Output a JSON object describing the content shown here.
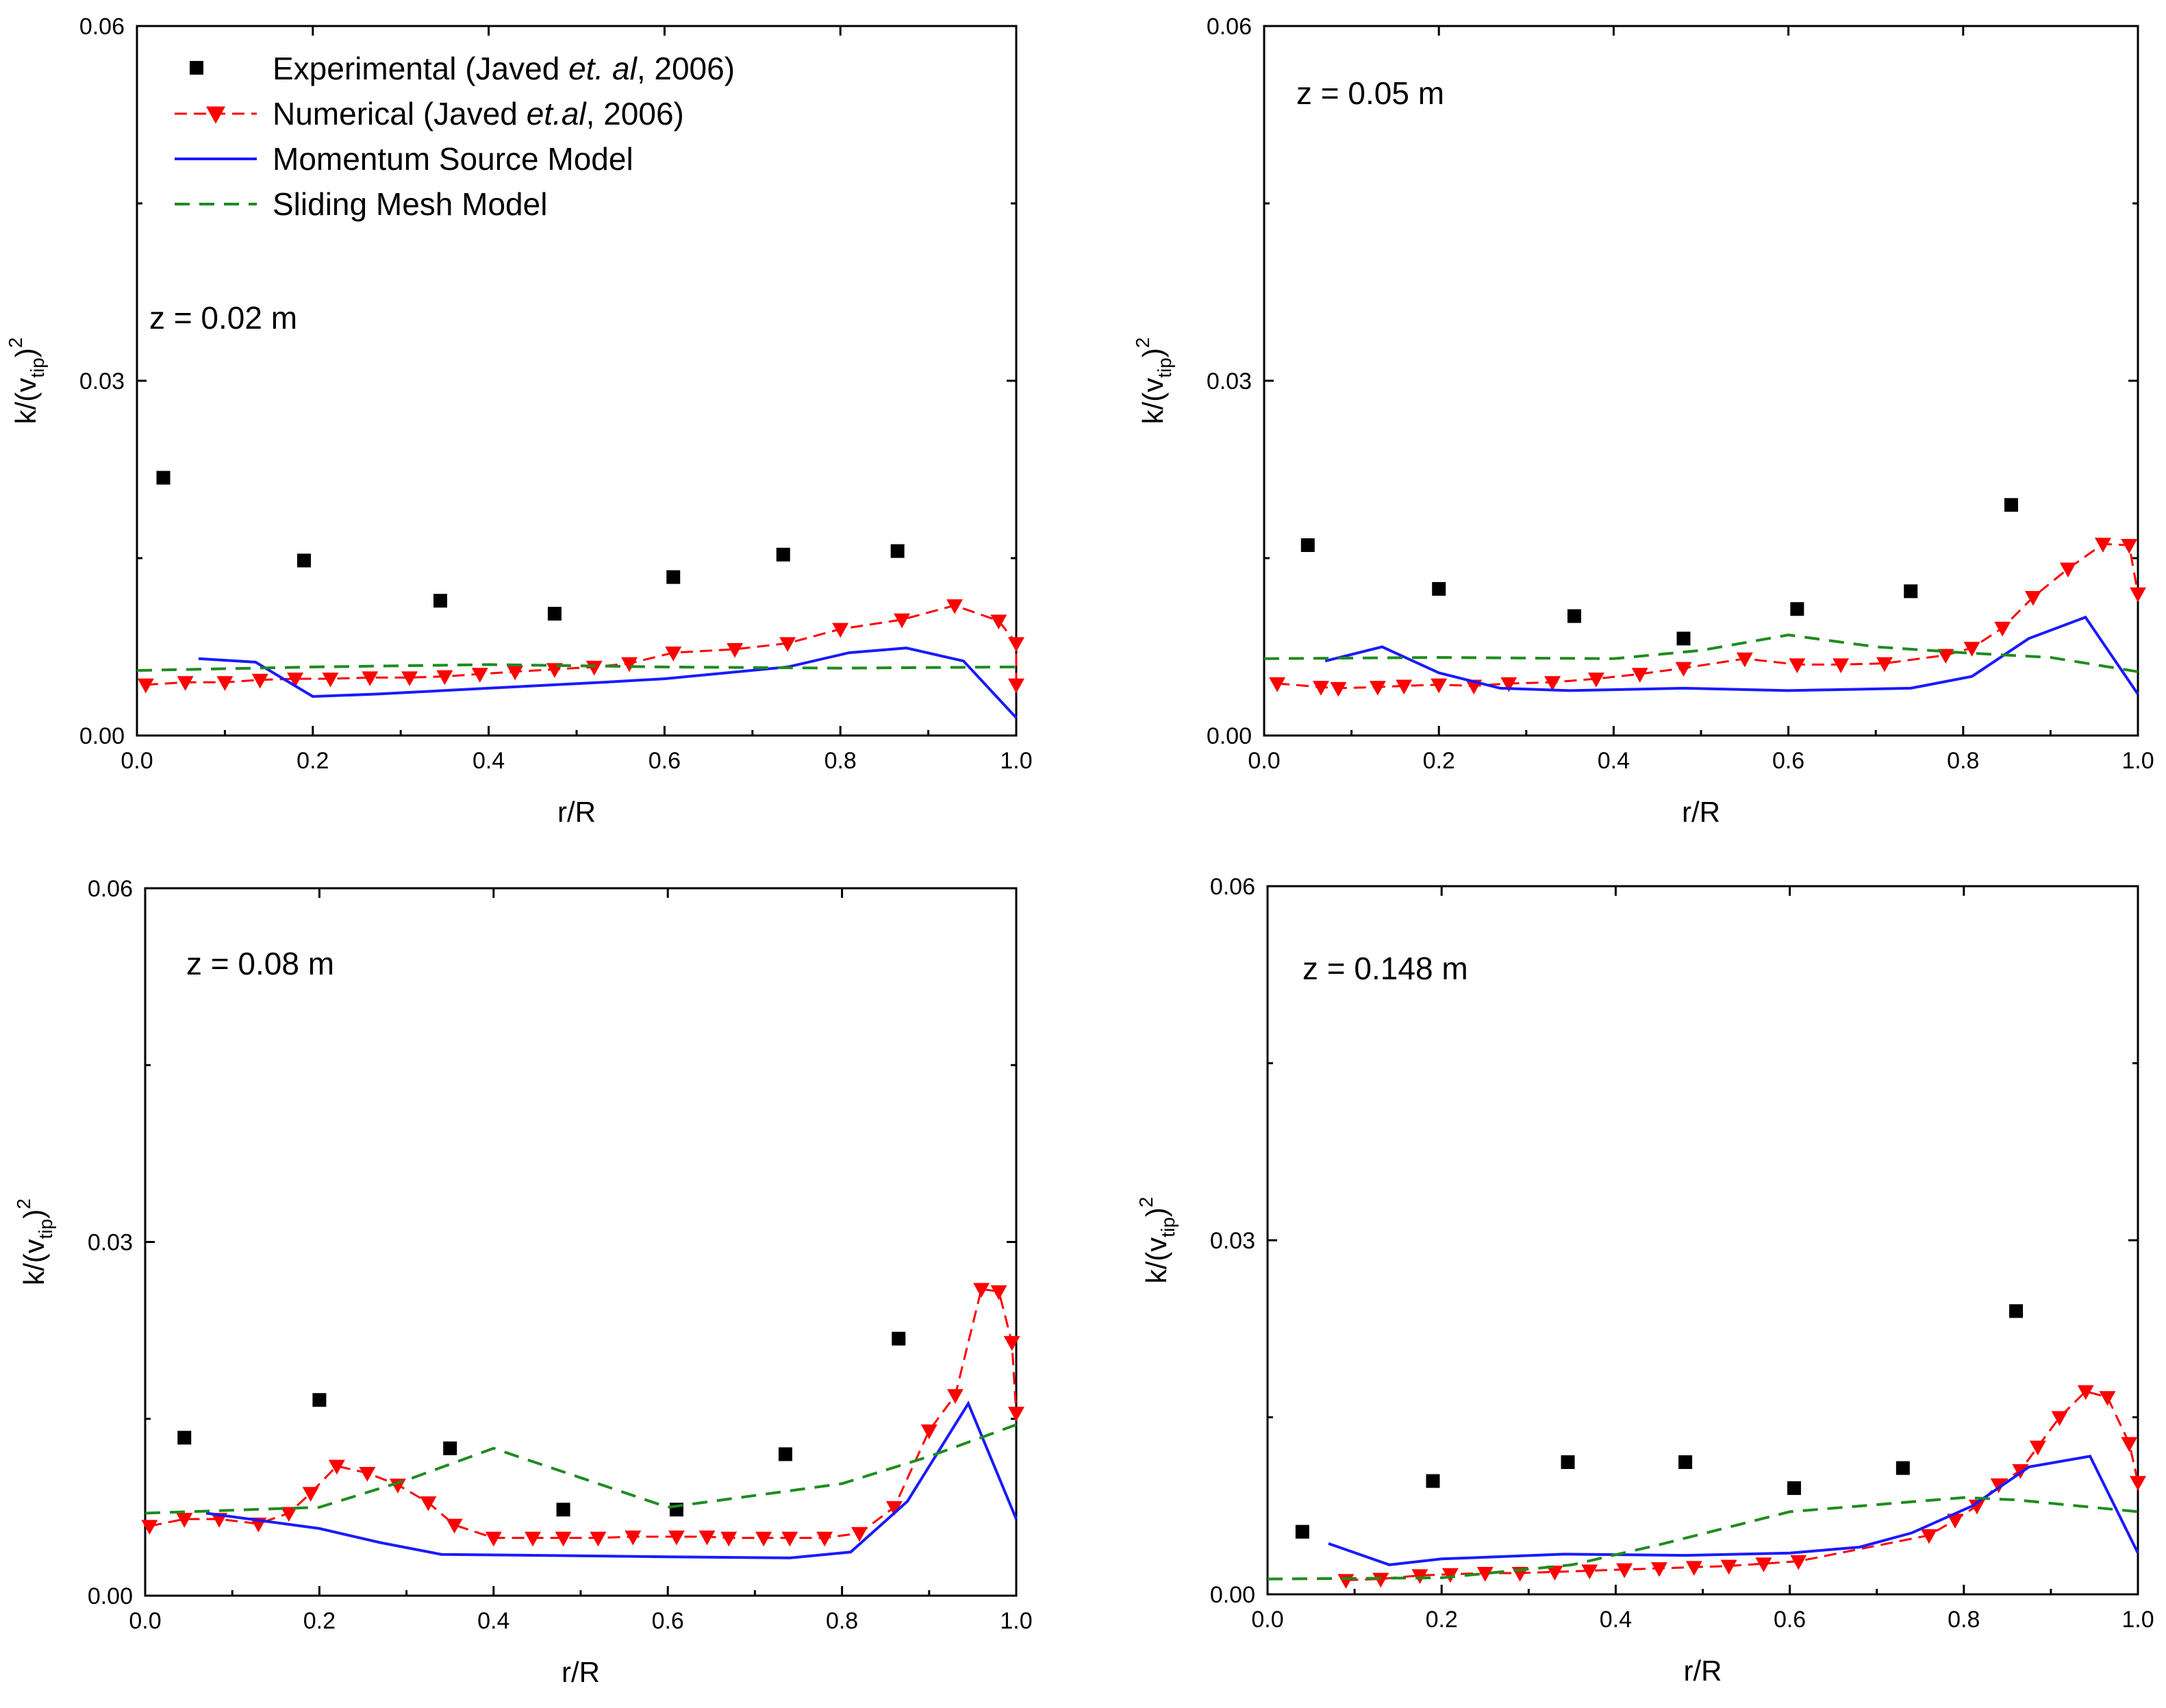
{
  "colors": {
    "experimental": "#000000",
    "numerical": "#ff0000",
    "momentum": "#1a1aff",
    "sliding": "#1e8c1e"
  },
  "legend": {
    "experimental": {
      "pre": "Experimental (Javed ",
      "ital": "et. al",
      "post": ", 2006)"
    },
    "numerical": {
      "pre": "Numerical (Javed ",
      "ital": "et.al",
      "post": ", 2006)"
    },
    "momentum": "Momentum Source Model",
    "sliding": "Sliding Mesh Model"
  },
  "chart_data": [
    {
      "type": "scatter",
      "annotation": "z = 0.02 m",
      "xlabel": "r/R",
      "ylabel": {
        "base": "k/(v",
        "sub": "tip",
        "close": ")",
        "sup": "2"
      },
      "xlim": [
        0.0,
        1.0
      ],
      "ylim": [
        0.0,
        0.06
      ],
      "xticks": [
        "0.0",
        "0.2",
        "0.4",
        "0.6",
        "0.8",
        "1.0"
      ],
      "yticks": [
        "0.00",
        "0.03",
        "0.06"
      ],
      "series": [
        {
          "name": "Experimental (Javed et. al, 2006)",
          "kind": "markers-square",
          "x": [
            0.03,
            0.19,
            0.345,
            0.475,
            0.61,
            0.735,
            0.865
          ],
          "y": [
            0.0218,
            0.0148,
            0.0114,
            0.0103,
            0.0134,
            0.0153,
            0.0156
          ]
        },
        {
          "name": "Numerical (Javed et.al, 2006)",
          "kind": "dash-triangle",
          "x": [
            0.01,
            0.055,
            0.1,
            0.14,
            0.18,
            0.22,
            0.265,
            0.31,
            0.35,
            0.39,
            0.43,
            0.475,
            0.52,
            0.56,
            0.61,
            0.68,
            0.74,
            0.8,
            0.87,
            0.93,
            0.98,
            1.0,
            1.0
          ],
          "y": [
            0.0043,
            0.0045,
            0.0045,
            0.0047,
            0.0048,
            0.0048,
            0.0049,
            0.0049,
            0.005,
            0.0052,
            0.0054,
            0.0056,
            0.0058,
            0.0061,
            0.007,
            0.0073,
            0.0078,
            0.009,
            0.0098,
            0.011,
            0.0097,
            0.0078,
            0.0043
          ]
        },
        {
          "name": "Momentum Source Model",
          "kind": "line",
          "x": [
            0.07,
            0.135,
            0.2,
            0.27,
            0.4,
            0.53,
            0.6,
            0.74,
            0.81,
            0.875,
            0.94,
            1.0
          ],
          "y": [
            0.0065,
            0.0062,
            0.0033,
            0.0035,
            0.004,
            0.0045,
            0.0048,
            0.0058,
            0.007,
            0.0074,
            0.0063,
            0.0015
          ]
        },
        {
          "name": "Sliding Mesh Model",
          "kind": "dash",
          "x": [
            0.0,
            0.2,
            0.4,
            0.6,
            0.8,
            1.0
          ],
          "y": [
            0.0055,
            0.0058,
            0.006,
            0.0058,
            0.0057,
            0.0058
          ]
        }
      ]
    },
    {
      "type": "scatter",
      "annotation": "z = 0.05 m",
      "xlabel": "r/R",
      "ylabel": {
        "base": "k/(v",
        "sub": "tip",
        "close": ")",
        "sup": "2"
      },
      "xlim": [
        0.0,
        1.0
      ],
      "ylim": [
        0.0,
        0.06
      ],
      "xticks": [
        "0.0",
        "0.2",
        "0.4",
        "0.6",
        "0.8",
        "1.0"
      ],
      "yticks": [
        "0.00",
        "0.03",
        "0.06"
      ],
      "series": [
        {
          "name": "Experimental (Javed et. al, 2006)",
          "kind": "markers-square",
          "x": [
            0.05,
            0.2,
            0.355,
            0.48,
            0.61,
            0.74,
            0.855
          ],
          "y": [
            0.0161,
            0.0124,
            0.0101,
            0.0082,
            0.0107,
            0.0122,
            0.0195
          ]
        },
        {
          "name": "Numerical (Javed et.al, 2006)",
          "kind": "dash-triangle",
          "x": [
            0.015,
            0.065,
            0.085,
            0.13,
            0.16,
            0.2,
            0.24,
            0.28,
            0.33,
            0.38,
            0.43,
            0.48,
            0.55,
            0.61,
            0.66,
            0.71,
            0.78,
            0.81,
            0.845,
            0.88,
            0.92,
            0.96,
            0.99,
            1.0
          ],
          "y": [
            0.0044,
            0.0041,
            0.004,
            0.0041,
            0.0042,
            0.0043,
            0.0042,
            0.0044,
            0.0045,
            0.0048,
            0.0052,
            0.0057,
            0.0065,
            0.006,
            0.006,
            0.0061,
            0.0068,
            0.0074,
            0.0091,
            0.0117,
            0.0141,
            0.0162,
            0.0161,
            0.012
          ]
        },
        {
          "name": "Momentum Source Model",
          "kind": "line",
          "x": [
            0.07,
            0.135,
            0.2,
            0.27,
            0.35,
            0.48,
            0.6,
            0.74,
            0.81,
            0.875,
            0.94,
            1.0
          ],
          "y": [
            0.0063,
            0.0075,
            0.0053,
            0.004,
            0.0038,
            0.004,
            0.0038,
            0.004,
            0.005,
            0.0082,
            0.01,
            0.0035
          ]
        },
        {
          "name": "Sliding Mesh Model",
          "kind": "dash",
          "x": [
            0.0,
            0.2,
            0.4,
            0.5,
            0.6,
            0.7,
            0.8,
            0.9,
            1.0
          ],
          "y": [
            0.0065,
            0.0066,
            0.0065,
            0.0072,
            0.0085,
            0.0075,
            0.007,
            0.0066,
            0.0054
          ]
        }
      ]
    },
    {
      "type": "scatter",
      "annotation": "z = 0.08 m",
      "xlabel": "r/R",
      "ylabel": {
        "base": "k/(v",
        "sub": "tip",
        "close": ")",
        "sup": "2"
      },
      "xlim": [
        0.0,
        1.0
      ],
      "ylim": [
        0.0,
        0.06
      ],
      "xticks": [
        "0.0",
        "0.2",
        "0.4",
        "0.6",
        "0.8",
        "1.0"
      ],
      "yticks": [
        "0.00",
        "0.03",
        "0.06"
      ],
      "series": [
        {
          "name": "Experimental (Javed et. al, 2006)",
          "kind": "markers-square",
          "x": [
            0.045,
            0.2,
            0.35,
            0.48,
            0.61,
            0.735,
            0.865
          ],
          "y": [
            0.0134,
            0.0166,
            0.0125,
            0.0073,
            0.0073,
            0.012,
            0.0218
          ]
        },
        {
          "name": "Numerical (Javed et.al, 2006)",
          "kind": "dash-triangle",
          "x": [
            0.005,
            0.045,
            0.085,
            0.13,
            0.165,
            0.19,
            0.22,
            0.255,
            0.29,
            0.325,
            0.355,
            0.4,
            0.445,
            0.48,
            0.52,
            0.56,
            0.61,
            0.645,
            0.67,
            0.71,
            0.74,
            0.78,
            0.82,
            0.86,
            0.9,
            0.93,
            0.96,
            0.98,
            0.995,
            1.0
          ],
          "y": [
            0.0059,
            0.0065,
            0.0065,
            0.0061,
            0.007,
            0.0087,
            0.011,
            0.0104,
            0.0094,
            0.0079,
            0.006,
            0.0049,
            0.0049,
            0.0049,
            0.0049,
            0.005,
            0.005,
            0.005,
            0.0049,
            0.0049,
            0.0049,
            0.0049,
            0.0053,
            0.0075,
            0.014,
            0.017,
            0.026,
            0.0258,
            0.0215,
            0.0155
          ]
        },
        {
          "name": "Momentum Source Model",
          "kind": "line",
          "x": [
            0.07,
            0.2,
            0.27,
            0.34,
            0.48,
            0.6,
            0.74,
            0.81,
            0.875,
            0.945,
            1.0
          ],
          "y": [
            0.007,
            0.0057,
            0.0045,
            0.0035,
            0.0034,
            0.0033,
            0.0032,
            0.0037,
            0.008,
            0.0163,
            0.0065
          ]
        },
        {
          "name": "Sliding Mesh Model",
          "kind": "dash",
          "x": [
            0.0,
            0.2,
            0.3,
            0.4,
            0.5,
            0.6,
            0.7,
            0.8,
            0.9,
            1.0
          ],
          "y": [
            0.007,
            0.0075,
            0.0098,
            0.0125,
            0.01,
            0.0075,
            0.0085,
            0.0095,
            0.0118,
            0.0145
          ]
        }
      ]
    },
    {
      "type": "scatter",
      "annotation": "z = 0.148 m",
      "xlabel": "r/R",
      "ylabel": {
        "base": "k/(v",
        "sub": "tip",
        "close": ")",
        "sup": "2"
      },
      "xlim": [
        0.0,
        1.0
      ],
      "ylim": [
        0.0,
        0.06
      ],
      "xticks": [
        "0.0",
        "0.2",
        "0.4",
        "0.6",
        "0.8",
        "1.0"
      ],
      "yticks": [
        "0.00",
        "0.03",
        "0.06"
      ],
      "series": [
        {
          "name": "Experimental (Javed et. al, 2006)",
          "kind": "markers-square",
          "x": [
            0.04,
            0.19,
            0.345,
            0.48,
            0.605,
            0.73,
            0.86
          ],
          "y": [
            0.0053,
            0.0096,
            0.0112,
            0.0112,
            0.009,
            0.0107,
            0.024
          ]
        },
        {
          "name": "Numerical (Javed et.al, 2006)",
          "kind": "dash-triangle",
          "x": [
            0.09,
            0.13,
            0.175,
            0.21,
            0.25,
            0.29,
            0.33,
            0.37,
            0.41,
            0.45,
            0.49,
            0.53,
            0.57,
            0.61,
            0.76,
            0.79,
            0.815,
            0.84,
            0.865,
            0.885,
            0.91,
            0.94,
            0.965,
            0.99,
            1.0
          ],
          "y": [
            0.0012,
            0.0013,
            0.0016,
            0.0017,
            0.0018,
            0.0018,
            0.0019,
            0.002,
            0.0021,
            0.0022,
            0.0023,
            0.0024,
            0.0026,
            0.0028,
            0.005,
            0.0063,
            0.0075,
            0.0093,
            0.0105,
            0.0125,
            0.015,
            0.0172,
            0.0167,
            0.0128,
            0.0095
          ]
        },
        {
          "name": "Momentum Source Model",
          "kind": "line",
          "x": [
            0.07,
            0.14,
            0.2,
            0.27,
            0.34,
            0.48,
            0.6,
            0.68,
            0.74,
            0.81,
            0.875,
            0.945,
            1.0
          ],
          "y": [
            0.0043,
            0.0025,
            0.003,
            0.0032,
            0.0034,
            0.0033,
            0.0035,
            0.004,
            0.0052,
            0.0075,
            0.0108,
            0.0117,
            0.0035
          ]
        },
        {
          "name": "Sliding Mesh Model",
          "kind": "dash",
          "x": [
            0.0,
            0.2,
            0.35,
            0.45,
            0.6,
            0.8,
            0.86,
            1.0
          ],
          "y": [
            0.0013,
            0.0014,
            0.0025,
            0.0042,
            0.007,
            0.0082,
            0.008,
            0.007
          ]
        }
      ]
    }
  ]
}
